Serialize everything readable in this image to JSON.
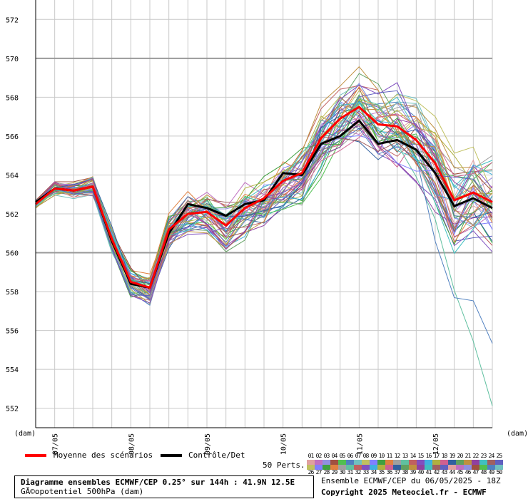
{
  "chart_data": {
    "type": "line",
    "ylabel": "(dam)",
    "xlabel": "(dam)",
    "ylim": [
      551,
      573
    ],
    "yticks": [
      552,
      554,
      556,
      558,
      560,
      562,
      564,
      566,
      568,
      570,
      572
    ],
    "xticks": [
      {
        "label": "07/05",
        "x": 1
      },
      {
        "label": "08/05",
        "x": 5
      },
      {
        "label": "09/05",
        "x": 9
      },
      {
        "label": "10/05",
        "x": 13
      },
      {
        "label": "11/05",
        "x": 17
      },
      {
        "label": "12/05",
        "x": 21
      }
    ],
    "x": [
      0,
      1,
      2,
      3,
      4,
      5,
      6,
      7,
      8,
      9,
      10,
      11,
      12,
      13,
      14,
      15,
      16,
      17,
      18,
      19,
      20,
      21,
      22,
      23,
      24
    ],
    "series": [
      {
        "name": "Moyenne des scénarios",
        "color": "#ff0000",
        "values": [
          562.5,
          563.3,
          563.2,
          563.4,
          560.7,
          558.5,
          558.2,
          561.2,
          562.0,
          562.1,
          561.4,
          562.3,
          562.8,
          563.7,
          564.1,
          565.9,
          566.9,
          567.5,
          566.6,
          566.5,
          565.8,
          564.6,
          562.7,
          563.1,
          562.6
        ]
      },
      {
        "name": "Contrôle/Det",
        "color": "#000000",
        "values": [
          562.6,
          563.3,
          563.2,
          563.4,
          560.6,
          558.4,
          558.2,
          561.0,
          562.5,
          562.3,
          561.9,
          562.5,
          562.7,
          564.1,
          564.0,
          565.6,
          566.0,
          566.8,
          565.6,
          565.8,
          565.3,
          564.1,
          562.4,
          562.8,
          562.3
        ]
      }
    ]
  },
  "legend": {
    "mean_label": "Moyenne des scénarios",
    "control_label": "Contrôle/Det",
    "perts_label": "50 Perts."
  },
  "members": {
    "row1": [
      "01",
      "02",
      "03",
      "04",
      "05",
      "06",
      "07",
      "08",
      "09",
      "10",
      "11",
      "12",
      "13",
      "14",
      "15",
      "16",
      "17",
      "18",
      "19",
      "20",
      "21",
      "22",
      "23",
      "24",
      "25"
    ],
    "row2": [
      "26",
      "27",
      "28",
      "29",
      "30",
      "31",
      "32",
      "33",
      "34",
      "35",
      "36",
      "37",
      "38",
      "39",
      "40",
      "41",
      "42",
      "43",
      "44",
      "45",
      "46",
      "47",
      "48",
      "49",
      "50"
    ]
  },
  "footer": {
    "title_line1": "Diagramme ensembles ECMWF/CEP 0.25° sur 144h : 41.9N 12.5E",
    "title_line2": "GÃ©opotentiel 500hPa (dam)",
    "run_info": "Ensemble ECMWF/CEP du 06/05/2025 - 18Z",
    "copyright": "Copyright 2025 Meteociel.fr - ECMWF"
  }
}
